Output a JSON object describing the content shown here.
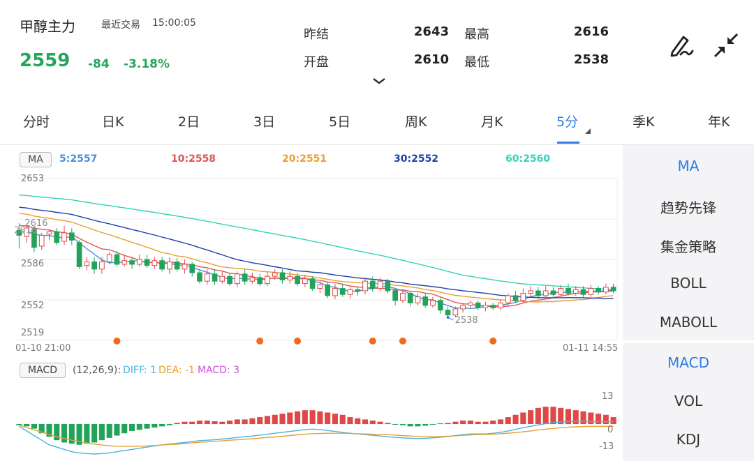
{
  "header": {
    "title": "甲醇主力",
    "recent_label": "最近交易",
    "recent_time": "15:00:05",
    "price": "2559",
    "change": "-84",
    "change_pct": "-3.18%",
    "stats": [
      {
        "label": "昨结",
        "value": "2643"
      },
      {
        "label": "最高",
        "value": "2616"
      },
      {
        "label": "开盘",
        "value": "2610"
      },
      {
        "label": "最低",
        "value": "2538"
      }
    ],
    "icons": [
      "draw-icon",
      "collapse-icon",
      "chevron-down-icon"
    ]
  },
  "tabs": [
    {
      "label": "分时"
    },
    {
      "label": "日K"
    },
    {
      "label": "2日"
    },
    {
      "label": "3日"
    },
    {
      "label": "5日"
    },
    {
      "label": "周K"
    },
    {
      "label": "月K"
    },
    {
      "label": "5分",
      "active": true
    },
    {
      "label": "季K"
    },
    {
      "label": "年K"
    }
  ],
  "main_indicator": {
    "badge": "MA",
    "values": [
      {
        "text": "5:2557",
        "color": "#4a90d9"
      },
      {
        "text": "10:2558",
        "color": "#e05555"
      },
      {
        "text": "20:2551",
        "color": "#e8a030"
      },
      {
        "text": "30:2552",
        "color": "#1f3fa8"
      },
      {
        "text": "60:2560",
        "color": "#2fd3b8"
      }
    ]
  },
  "sub_indicator": {
    "badge": "MACD",
    "params": "(12,26,9):",
    "diff": "DIFF: 1",
    "dea": "DEA: -1",
    "macd": "MACD: 3"
  },
  "side_main": [
    {
      "label": "MA",
      "active": true
    },
    {
      "label": "趋势先锋"
    },
    {
      "label": "集金策略"
    },
    {
      "label": "BOLL"
    },
    {
      "label": "MABOLL"
    }
  ],
  "side_sub": [
    {
      "label": "MACD",
      "active": true
    },
    {
      "label": "VOL"
    },
    {
      "label": "KDJ"
    }
  ],
  "chart_data": [
    {
      "type": "candlestick",
      "y_ticks": [
        "2653",
        "2586",
        "2552",
        "2519"
      ],
      "ylim": [
        2519,
        2653
      ],
      "x_start_label": "01-10 21:00",
      "x_end_label": "01-11 14:55",
      "high_label": "2616",
      "low_label": "2538",
      "open_label": "2610",
      "candles": [
        [
          2610,
          2606,
          2616,
          2595
        ],
        [
          2605,
          2612,
          2614,
          2600
        ],
        [
          2611,
          2596,
          2613,
          2592
        ],
        [
          2597,
          2606,
          2608,
          2594
        ],
        [
          2607,
          2609,
          2611,
          2602
        ],
        [
          2609,
          2600,
          2612,
          2598
        ],
        [
          2601,
          2608,
          2614,
          2598
        ],
        [
          2608,
          2602,
          2612,
          2598
        ],
        [
          2600,
          2580,
          2602,
          2578
        ],
        [
          2581,
          2584,
          2588,
          2577
        ],
        [
          2584,
          2578,
          2588,
          2574
        ],
        [
          2578,
          2584,
          2588,
          2574
        ],
        [
          2584,
          2590,
          2592,
          2582
        ],
        [
          2590,
          2582,
          2593,
          2580
        ],
        [
          2582,
          2585,
          2590,
          2580
        ],
        [
          2585,
          2582,
          2588,
          2578
        ],
        [
          2582,
          2586,
          2590,
          2580
        ],
        [
          2586,
          2581,
          2590,
          2579
        ],
        [
          2581,
          2585,
          2588,
          2578
        ],
        [
          2585,
          2578,
          2588,
          2576
        ],
        [
          2578,
          2584,
          2588,
          2574
        ],
        [
          2584,
          2578,
          2587,
          2576
        ],
        [
          2578,
          2582,
          2586,
          2574
        ],
        [
          2582,
          2575,
          2584,
          2572
        ],
        [
          2575,
          2568,
          2577,
          2566
        ],
        [
          2568,
          2574,
          2578,
          2565
        ],
        [
          2574,
          2568,
          2578,
          2565
        ],
        [
          2568,
          2572,
          2576,
          2566
        ],
        [
          2572,
          2566,
          2575,
          2564
        ],
        [
          2566,
          2574,
          2576,
          2563
        ],
        [
          2574,
          2568,
          2578,
          2565
        ],
        [
          2568,
          2571,
          2575,
          2566
        ],
        [
          2571,
          2566,
          2574,
          2564
        ],
        [
          2566,
          2572,
          2576,
          2564
        ],
        [
          2572,
          2575,
          2578,
          2569
        ],
        [
          2575,
          2569,
          2578,
          2566
        ],
        [
          2569,
          2572,
          2576,
          2566
        ],
        [
          2572,
          2566,
          2575,
          2564
        ],
        [
          2566,
          2570,
          2573,
          2563
        ],
        [
          2570,
          2562,
          2572,
          2560
        ],
        [
          2562,
          2565,
          2568,
          2558
        ],
        [
          2565,
          2556,
          2567,
          2554
        ],
        [
          2556,
          2562,
          2566,
          2553
        ],
        [
          2562,
          2557,
          2566,
          2555
        ],
        [
          2557,
          2561,
          2563,
          2554
        ],
        [
          2561,
          2560,
          2564,
          2556
        ],
        [
          2560,
          2568,
          2571,
          2557
        ],
        [
          2568,
          2562,
          2572,
          2559
        ],
        [
          2562,
          2568,
          2571,
          2560
        ],
        [
          2568,
          2560,
          2570,
          2558
        ],
        [
          2560,
          2552,
          2562,
          2548
        ],
        [
          2552,
          2558,
          2560,
          2550
        ],
        [
          2558,
          2550,
          2560,
          2547
        ],
        [
          2550,
          2555,
          2558,
          2548
        ],
        [
          2555,
          2548,
          2558,
          2546
        ],
        [
          2548,
          2552,
          2555,
          2546
        ],
        [
          2552,
          2544,
          2554,
          2541
        ],
        [
          2544,
          2540,
          2547,
          2538
        ],
        [
          2540,
          2545,
          2547,
          2538
        ],
        [
          2545,
          2548,
          2550,
          2542
        ],
        [
          2548,
          2550,
          2552,
          2546
        ],
        [
          2550,
          2546,
          2552,
          2544
        ],
        [
          2546,
          2548,
          2551,
          2543
        ],
        [
          2548,
          2546,
          2550,
          2544
        ],
        [
          2546,
          2550,
          2553,
          2544
        ],
        [
          2550,
          2556,
          2558,
          2548
        ],
        [
          2556,
          2552,
          2560,
          2550
        ],
        [
          2552,
          2558,
          2562,
          2550
        ],
        [
          2558,
          2560,
          2564,
          2555
        ],
        [
          2560,
          2556,
          2563,
          2553
        ],
        [
          2556,
          2560,
          2564,
          2554
        ],
        [
          2560,
          2557,
          2563,
          2554
        ],
        [
          2557,
          2562,
          2565,
          2555
        ],
        [
          2562,
          2558,
          2566,
          2556
        ],
        [
          2558,
          2561,
          2564,
          2556
        ],
        [
          2561,
          2557,
          2564,
          2555
        ],
        [
          2557,
          2562,
          2565,
          2555
        ],
        [
          2562,
          2559,
          2564,
          2557
        ],
        [
          2559,
          2563,
          2566,
          2557
        ],
        [
          2563,
          2560,
          2566,
          2558
        ]
      ],
      "ma_last": {
        "MA5": 2557,
        "MA10": 2558,
        "MA20": 2551,
        "MA30": 2552,
        "MA60": 2560
      },
      "signals": [
        13,
        32,
        37,
        47,
        51,
        63
      ]
    },
    {
      "type": "bar",
      "series_name": "MACD",
      "ylim": [
        -13,
        13
      ],
      "y_ticks": [
        "13",
        "0",
        "-13"
      ],
      "values": [
        -0.5,
        -1,
        -2,
        -4,
        -5.5,
        -7,
        -8,
        -8.5,
        -9,
        -8.5,
        -8,
        -7,
        -6,
        -5,
        -4,
        -3,
        -2.5,
        -2,
        -1.5,
        -1,
        -0.5,
        0.5,
        1,
        1,
        1.5,
        1.5,
        1.2,
        1,
        1.5,
        2,
        2,
        2.5,
        3,
        3.5,
        4,
        4.5,
        5,
        5.5,
        6,
        6,
        5.5,
        5,
        4.5,
        4,
        3,
        2.5,
        2,
        1.5,
        1,
        0.5,
        -0.3,
        -0.5,
        -1,
        -1,
        -0.7,
        -0.3,
        0.3,
        0.5,
        1,
        1.5,
        1.5,
        1,
        1,
        1.5,
        2,
        3,
        4,
        5,
        6,
        7,
        7.5,
        7.5,
        7,
        6.5,
        6,
        5.5,
        5,
        4.5,
        4,
        3
      ],
      "diff": [
        -1,
        -3,
        -5,
        -7,
        -9,
        -10,
        -11,
        -12,
        -12.5,
        -12.8,
        -13,
        -12.8,
        -12.5,
        -12,
        -11.5,
        -11,
        -10.5,
        -10,
        -9.5,
        -9,
        -8.7,
        -8.3,
        -8,
        -7.6,
        -7.2,
        -7,
        -6.8,
        -6.5,
        -6.2,
        -5.8,
        -5.5,
        -5.2,
        -4.8,
        -4.4,
        -4,
        -3.6,
        -3.2,
        -2.8,
        -2.4,
        -2.2,
        -2.4,
        -2.8,
        -3.2,
        -3.6,
        -4,
        -4.3,
        -4.6,
        -4.9,
        -5.2,
        -5.5,
        -5.8,
        -6,
        -6.2,
        -6.3,
        -6.2,
        -6,
        -5.7,
        -5.4,
        -5,
        -4.6,
        -4.3,
        -4.3,
        -4.3,
        -4,
        -3.6,
        -3,
        -2.3,
        -1.6,
        -1,
        -0.4,
        0.2,
        0.6,
        0.9,
        1.1,
        1.2,
        1.2,
        1.1,
        1.1,
        1,
        1
      ],
      "dea": [
        -0.5,
        -1.5,
        -2.5,
        -3.5,
        -4.5,
        -5.5,
        -6.3,
        -7,
        -7.6,
        -8.2,
        -8.7,
        -9.1,
        -9.4,
        -9.6,
        -9.7,
        -9.7,
        -9.6,
        -9.5,
        -9.3,
        -9.1,
        -8.9,
        -8.7,
        -8.5,
        -8.2,
        -7.9,
        -7.7,
        -7.5,
        -7.3,
        -7,
        -6.8,
        -6.6,
        -6.4,
        -6.1,
        -5.8,
        -5.6,
        -5.3,
        -5,
        -4.7,
        -4.4,
        -4.2,
        -4.1,
        -4,
        -4,
        -4,
        -4.1,
        -4.2,
        -4.3,
        -4.4,
        -4.5,
        -4.6,
        -4.8,
        -5,
        -5.2,
        -5.4,
        -5.5,
        -5.5,
        -5.4,
        -5.3,
        -5.1,
        -4.9,
        -4.7,
        -4.6,
        -4.5,
        -4.4,
        -4.2,
        -4,
        -3.7,
        -3.4,
        -3,
        -2.6,
        -2.2,
        -1.9,
        -1.6,
        -1.4,
        -1.2,
        -1.1,
        -1,
        -1,
        -1,
        -1
      ]
    }
  ]
}
